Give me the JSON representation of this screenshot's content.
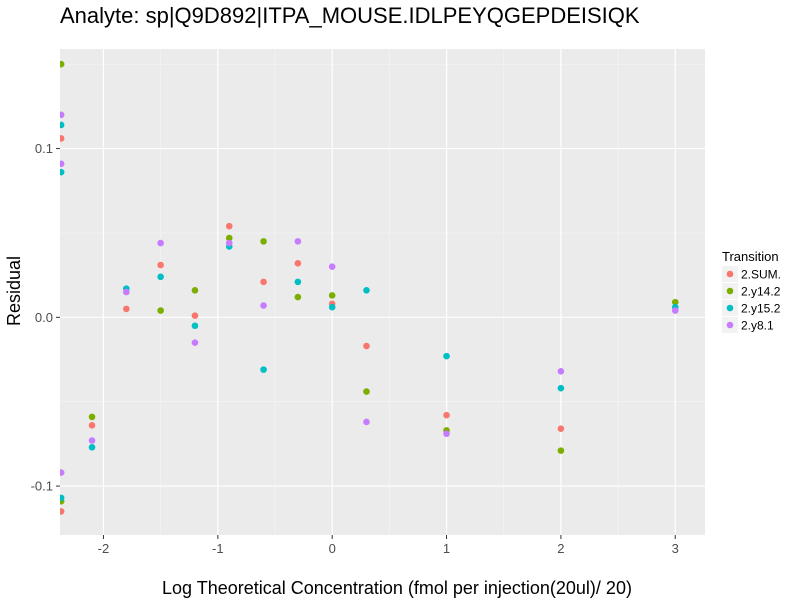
{
  "chart_data": {
    "type": "scatter",
    "title": "Analyte: sp|Q9D892|ITPA_MOUSE.IDLPEYQGEPDEISIQK",
    "xlabel": "Log Theoretical Concentration (fmol per injection(20ul)/ 20)",
    "ylabel": "Residual",
    "xlim": [
      -2.38,
      3.26
    ],
    "ylim": [
      -0.129,
      0.159
    ],
    "x_ticks": [
      -2,
      -1,
      0,
      1,
      2,
      3
    ],
    "x_tick_labels": [
      "-2",
      "-1",
      "0",
      "1",
      "2",
      "3"
    ],
    "y_ticks": [
      -0.1,
      0.0,
      0.1
    ],
    "y_tick_labels": [
      "-0.1",
      "0.0",
      "0.1"
    ],
    "grid": true,
    "legend": {
      "title": "Transition",
      "position": "right"
    },
    "series": [
      {
        "name": "2.SUM.",
        "color": "#F8766D",
        "x": [
          -2.37,
          -2.37,
          -2.1,
          -1.8,
          -1.5,
          -1.2,
          -0.9,
          -0.6,
          -0.3,
          0.0,
          0.3,
          1.0,
          2.0
        ],
        "y": [
          0.106,
          -0.115,
          -0.064,
          0.005,
          0.031,
          0.001,
          0.054,
          0.021,
          0.032,
          0.008,
          -0.017,
          -0.058,
          -0.066
        ]
      },
      {
        "name": "2.y14.2",
        "color": "#7CAE00",
        "x": [
          -2.37,
          -2.37,
          -2.1,
          -1.5,
          -1.2,
          -0.9,
          -0.6,
          -0.3,
          0.0,
          0.3,
          1.0,
          2.0,
          3.0
        ],
        "y": [
          0.15,
          -0.109,
          -0.059,
          0.004,
          0.016,
          0.047,
          0.045,
          0.012,
          0.013,
          -0.044,
          -0.067,
          -0.079,
          0.009
        ]
      },
      {
        "name": "2.y15.2",
        "color": "#00BFC4",
        "x": [
          -2.37,
          -2.37,
          -2.37,
          -2.1,
          -1.8,
          -1.5,
          -1.2,
          -0.9,
          -0.6,
          -0.3,
          0.0,
          0.3,
          1.0,
          2.0,
          3.0
        ],
        "y": [
          0.114,
          0.086,
          -0.107,
          -0.077,
          0.017,
          0.024,
          -0.005,
          0.042,
          -0.031,
          0.021,
          0.006,
          0.016,
          -0.023,
          -0.042,
          0.006
        ]
      },
      {
        "name": "2.y8.1",
        "color": "#C77CFF",
        "x": [
          -2.37,
          -2.37,
          -2.37,
          -2.1,
          -1.8,
          -1.5,
          -1.2,
          -0.9,
          -0.6,
          -0.3,
          0.0,
          0.3,
          1.0,
          2.0,
          3.0
        ],
        "y": [
          0.12,
          0.091,
          -0.092,
          -0.073,
          0.015,
          0.044,
          -0.015,
          0.044,
          0.007,
          0.045,
          0.03,
          -0.062,
          -0.069,
          -0.032,
          0.004
        ]
      }
    ]
  }
}
